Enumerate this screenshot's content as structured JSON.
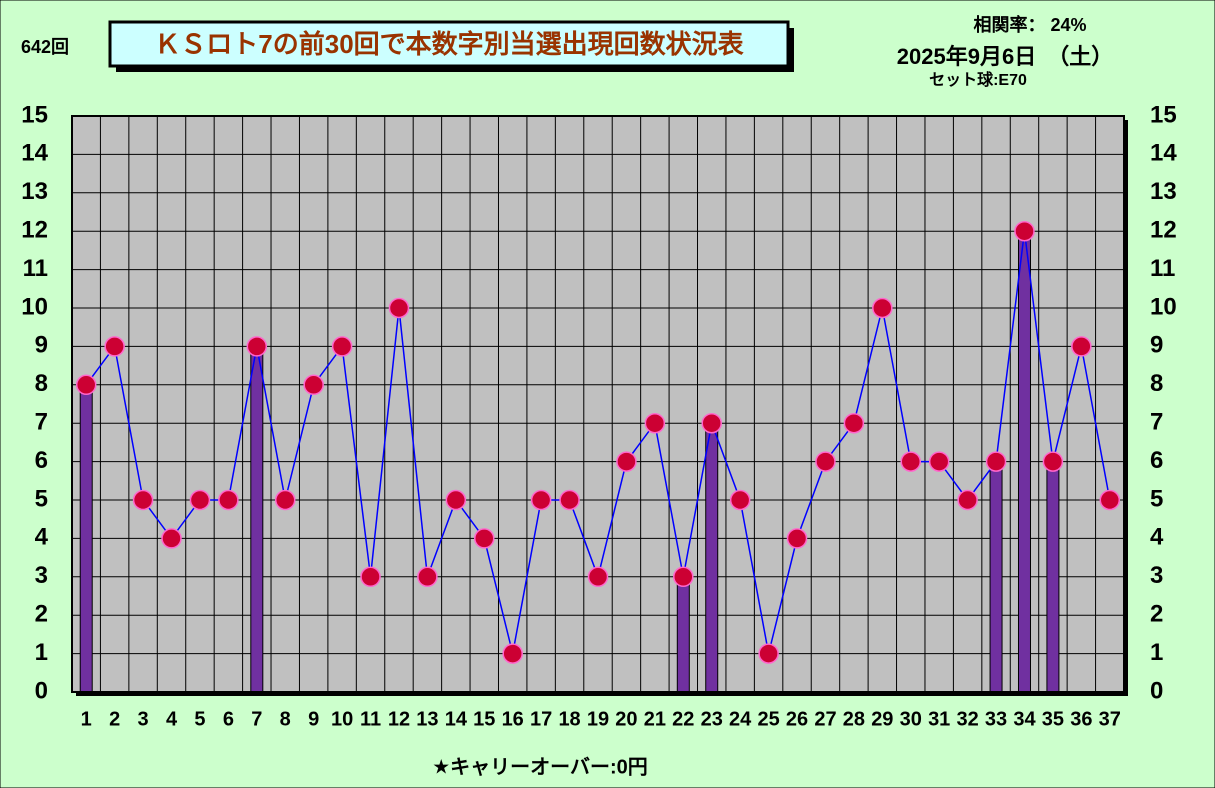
{
  "chart_data": {
    "type": "bar-line",
    "draw_label": "642回",
    "title": "ＫＳロト7の前30回で本数字別当選出現回数状況表",
    "correlation": "相関率：  24%",
    "date": "2025年9月6日　（土）",
    "set_ball": "セット球:E70",
    "footer": "★キャリーオーバー:0円",
    "categories": [
      "1",
      "2",
      "3",
      "4",
      "5",
      "6",
      "7",
      "8",
      "9",
      "10",
      "11",
      "12",
      "13",
      "14",
      "15",
      "16",
      "17",
      "18",
      "19",
      "20",
      "21",
      "22",
      "23",
      "24",
      "25",
      "26",
      "27",
      "28",
      "29",
      "30",
      "31",
      "32",
      "33",
      "34",
      "35",
      "36",
      "37"
    ],
    "series": [
      {
        "type": "bar",
        "color": "#7030a0",
        "values": [
          8,
          null,
          null,
          null,
          null,
          null,
          9,
          null,
          null,
          null,
          null,
          null,
          null,
          null,
          null,
          null,
          null,
          null,
          null,
          null,
          null,
          3,
          7,
          null,
          null,
          null,
          null,
          null,
          null,
          null,
          null,
          null,
          6,
          12,
          6,
          null,
          null
        ]
      },
      {
        "type": "line",
        "color": "#0000ff",
        "marker_color": "#cc0033",
        "values": [
          8,
          9,
          5,
          4,
          5,
          5,
          9,
          5,
          8,
          9,
          3,
          10,
          3,
          5,
          4,
          1,
          5,
          5,
          3,
          6,
          7,
          3,
          7,
          5,
          1,
          4,
          6,
          7,
          10,
          6,
          6,
          5,
          6,
          12,
          6,
          9,
          5
        ]
      }
    ],
    "ylim": [
      0,
      15
    ],
    "yticks": [
      0,
      1,
      2,
      3,
      4,
      5,
      6,
      7,
      8,
      9,
      10,
      11,
      12,
      13,
      14,
      15
    ],
    "grid": true
  }
}
